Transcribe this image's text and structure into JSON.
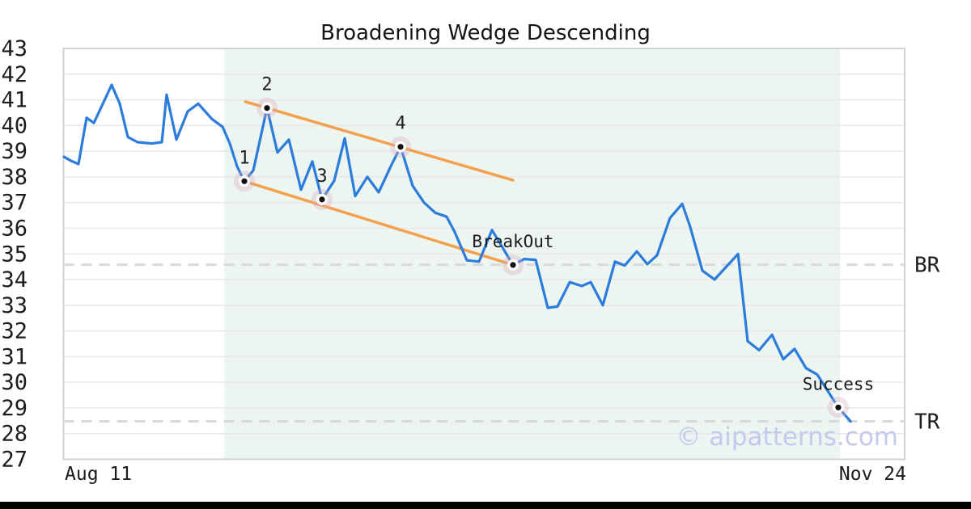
{
  "chart_data": {
    "type": "line",
    "title": "Broadening Wedge Descending",
    "watermark": "© aipatterns.com",
    "x_axis": {
      "start_tick": "Aug 11",
      "end_tick": "Nov 24"
    },
    "y_axis": {
      "min": 27,
      "max": 43,
      "tick_interval": 1
    },
    "pattern_region": {
      "x_start": 0.191,
      "x_end": 0.923
    },
    "series": {
      "name": "price",
      "points": [
        [
          0.0005,
          38.78
        ],
        [
          0.0091,
          38.62
        ],
        [
          0.0178,
          38.5
        ],
        [
          0.0274,
          40.3
        ],
        [
          0.0361,
          40.1
        ],
        [
          0.0572,
          41.58
        ],
        [
          0.0669,
          40.85
        ],
        [
          0.0765,
          39.55
        ],
        [
          0.088,
          39.35
        ],
        [
          0.1053,
          39.3
        ],
        [
          0.1169,
          39.35
        ],
        [
          0.1226,
          41.2
        ],
        [
          0.1342,
          39.45
        ],
        [
          0.1477,
          40.55
        ],
        [
          0.1602,
          40.85
        ],
        [
          0.1765,
          40.25
        ],
        [
          0.189,
          39.95
        ],
        [
          0.1977,
          39.3
        ],
        [
          0.2064,
          38.4
        ],
        [
          0.215,
          37.83
        ],
        [
          0.2256,
          38.25
        ],
        [
          0.2419,
          40.68
        ],
        [
          0.2544,
          38.95
        ],
        [
          0.2679,
          39.45
        ],
        [
          0.2823,
          37.5
        ],
        [
          0.2958,
          38.6
        ],
        [
          0.3073,
          37.12
        ],
        [
          0.3218,
          37.85
        ],
        [
          0.3343,
          39.5
        ],
        [
          0.3468,
          37.25
        ],
        [
          0.3612,
          38.0
        ],
        [
          0.3747,
          37.4
        ],
        [
          0.3882,
          38.35
        ],
        [
          0.4007,
          39.17
        ],
        [
          0.4151,
          37.65
        ],
        [
          0.4286,
          37.0
        ],
        [
          0.442,
          36.6
        ],
        [
          0.4555,
          36.45
        ],
        [
          0.4651,
          35.85
        ],
        [
          0.4796,
          34.75
        ],
        [
          0.494,
          34.7
        ],
        [
          0.5094,
          35.93
        ],
        [
          0.5344,
          34.57
        ],
        [
          0.5479,
          34.8
        ],
        [
          0.5613,
          34.77
        ],
        [
          0.5758,
          32.9
        ],
        [
          0.5873,
          32.95
        ],
        [
          0.6018,
          33.9
        ],
        [
          0.6162,
          33.75
        ],
        [
          0.6268,
          33.9
        ],
        [
          0.6412,
          33.0
        ],
        [
          0.6556,
          34.7
        ],
        [
          0.6672,
          34.55
        ],
        [
          0.6816,
          35.1
        ],
        [
          0.6941,
          34.6
        ],
        [
          0.7057,
          34.95
        ],
        [
          0.721,
          36.4
        ],
        [
          0.7355,
          36.95
        ],
        [
          0.7451,
          36.05
        ],
        [
          0.7595,
          34.35
        ],
        [
          0.774,
          34.0
        ],
        [
          0.8019,
          35.0
        ],
        [
          0.8134,
          31.6
        ],
        [
          0.8269,
          31.25
        ],
        [
          0.8423,
          31.85
        ],
        [
          0.8557,
          30.9
        ],
        [
          0.8692,
          31.3
        ],
        [
          0.8827,
          30.55
        ],
        [
          0.8961,
          30.3
        ],
        [
          0.9211,
          29.02
        ],
        [
          0.9356,
          28.48
        ]
      ]
    },
    "trendlines": [
      {
        "name": "upper-wedge-line",
        "x1": 0.216,
        "v1": 40.93,
        "x2": 0.5344,
        "v2": 37.87
      },
      {
        "name": "lower-wedge-line",
        "x1": 0.215,
        "v1": 37.83,
        "x2": 0.5344,
        "v2": 34.57
      }
    ],
    "markers": [
      {
        "label": "1",
        "x": 0.215,
        "v": 37.83,
        "label_class": "ptnum"
      },
      {
        "label": "2",
        "x": 0.2419,
        "v": 40.68,
        "label_class": "ptnum"
      },
      {
        "label": "3",
        "x": 0.3073,
        "v": 37.12,
        "label_class": "ptnum"
      },
      {
        "label": "4",
        "x": 0.4007,
        "v": 39.17,
        "label_class": "ptnum"
      },
      {
        "label": "BreakOut",
        "x": 0.5344,
        "v": 34.57,
        "label_class": "annot"
      },
      {
        "label": "Success",
        "x": 0.9211,
        "v": 29.02,
        "label_class": "annot"
      }
    ],
    "hlines": [
      {
        "label": "BR",
        "value": 34.58
      },
      {
        "label": "TR",
        "value": 28.48
      }
    ],
    "colors": {
      "line": "#2b7cdb",
      "trendline": "#f5a04c",
      "region_fill": "#ecf5f0",
      "grid": "#e8e8e8",
      "border": "#d2d2d2",
      "dashed_level": "#d9d9d9",
      "marker_halo": "rgba(219,166,188,0.33)",
      "marker_dot": "#111111",
      "watermark": "#c5c8ef"
    }
  }
}
